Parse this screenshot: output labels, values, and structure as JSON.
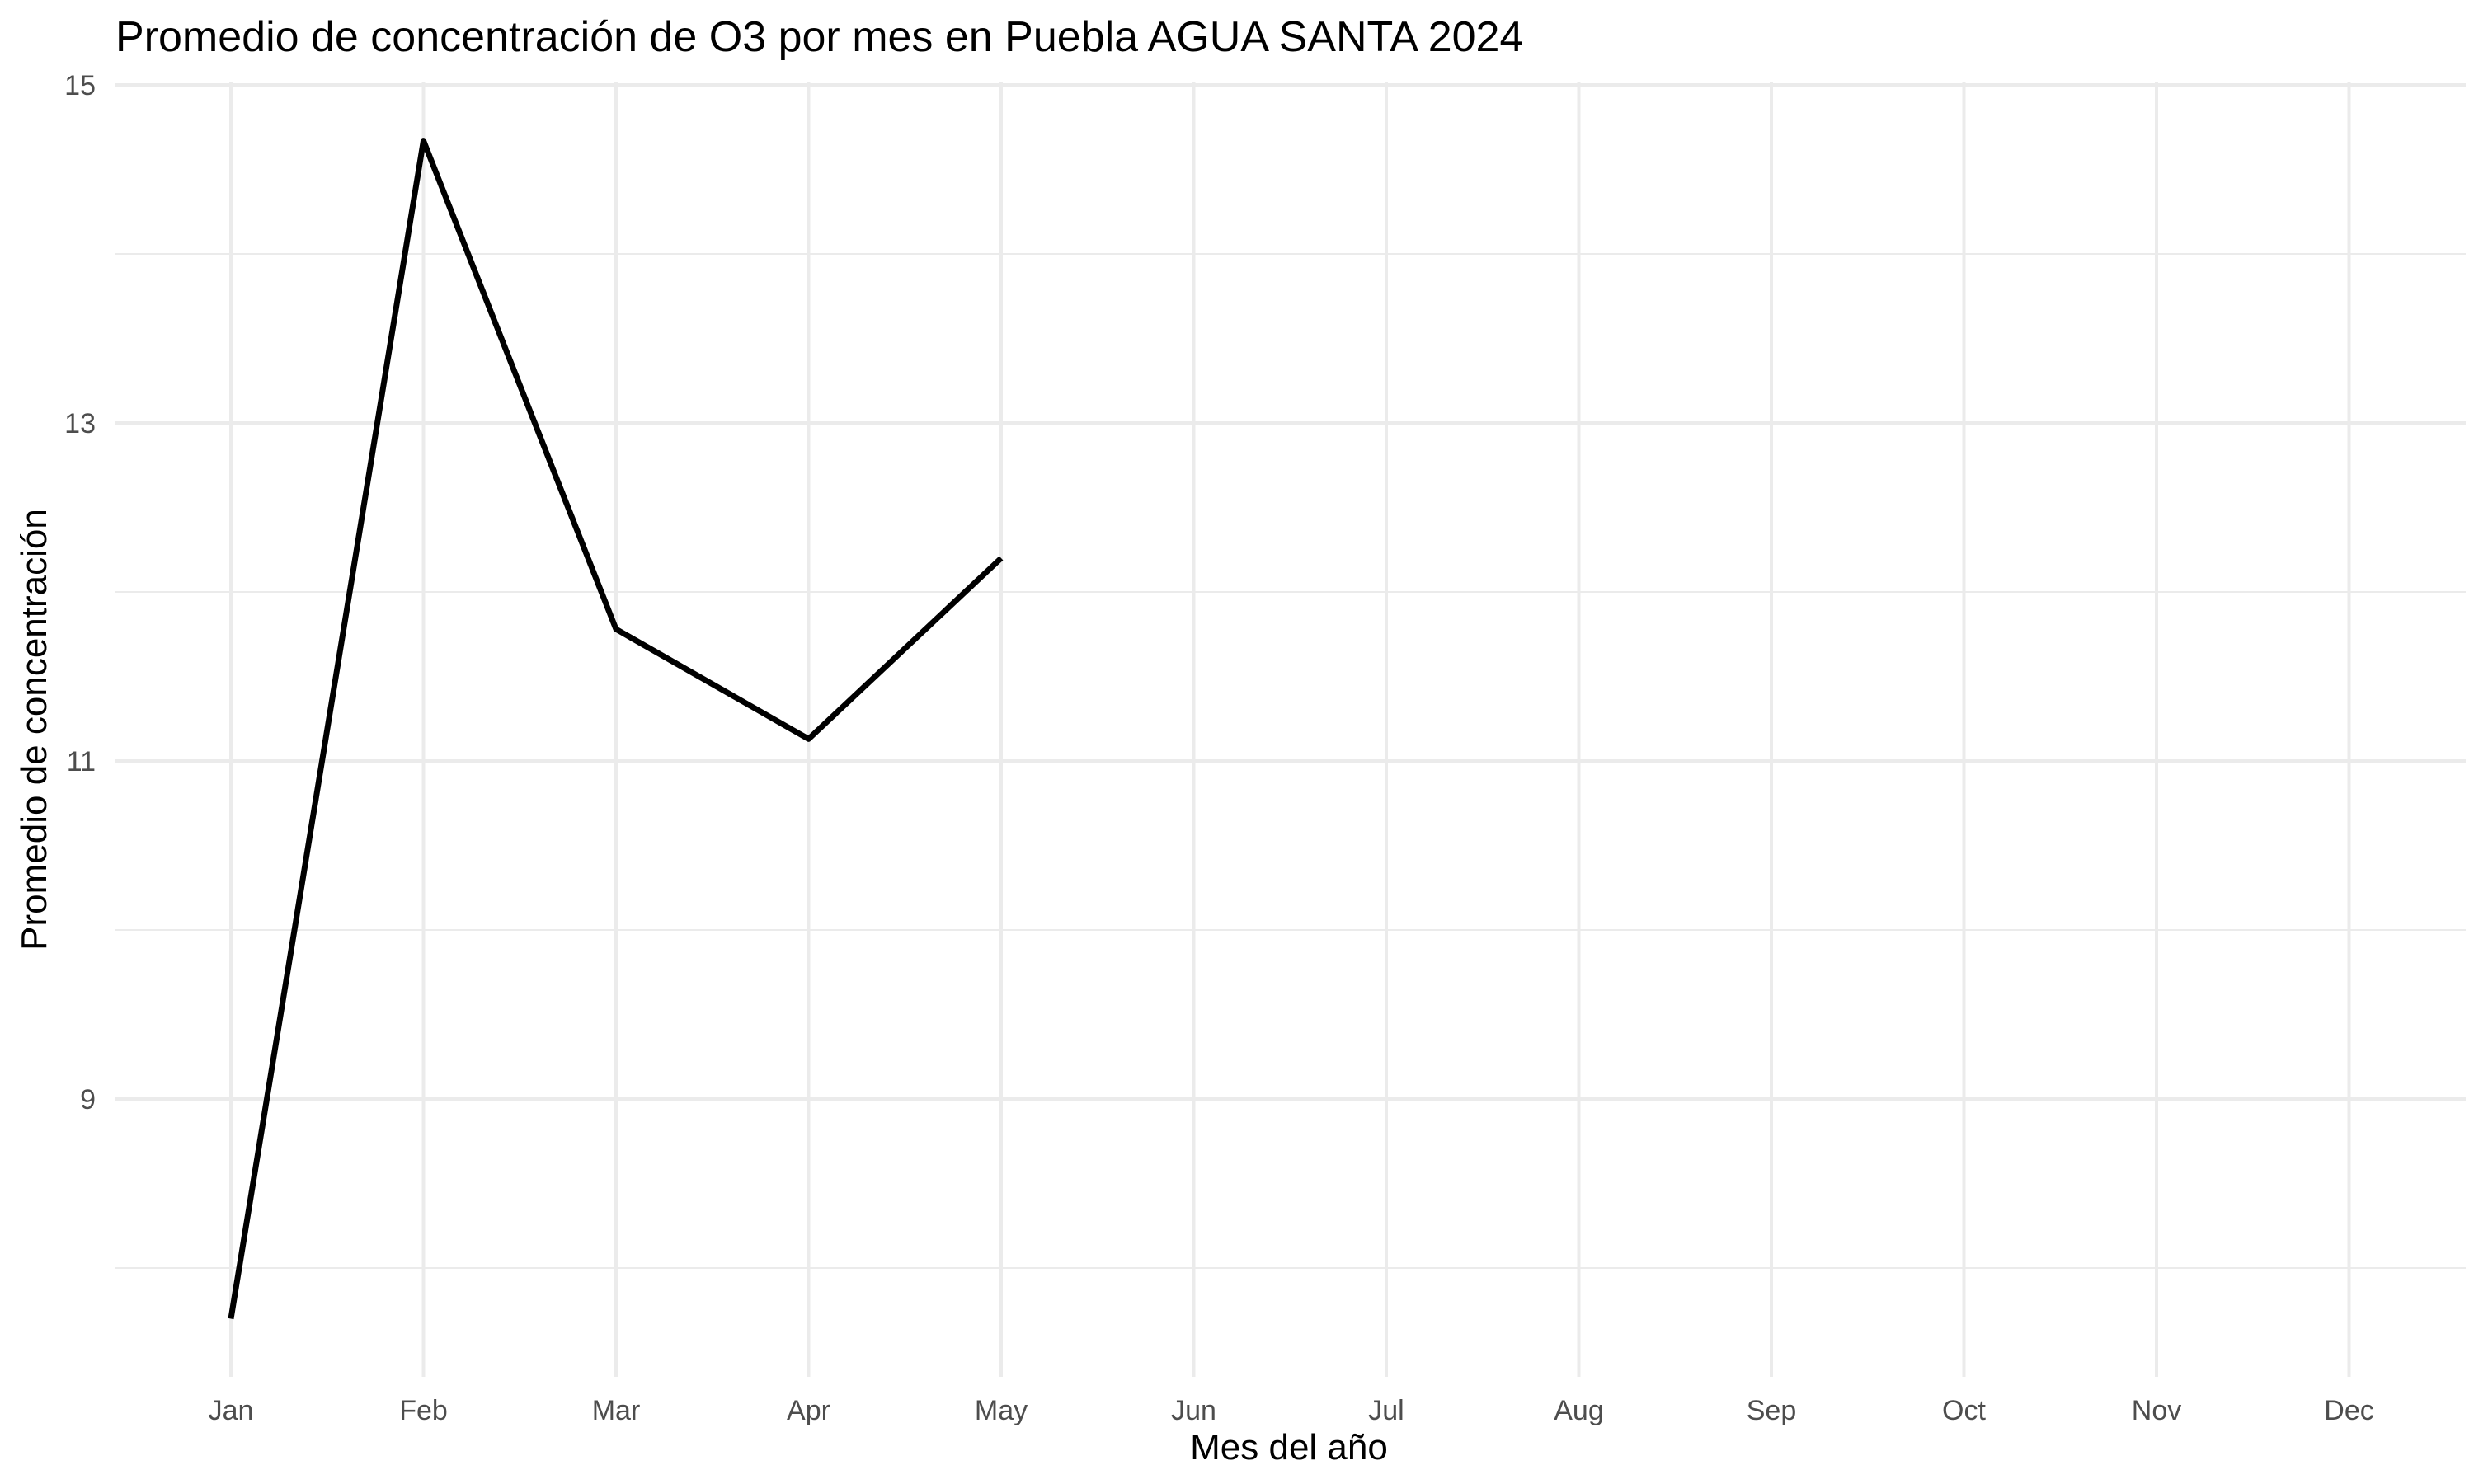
{
  "chart_data": {
    "type": "line",
    "title": "Promedio de concentración de O3 por mes en Puebla AGUA SANTA 2024",
    "xlabel": "Mes del año",
    "ylabel": "Promedio de concentración",
    "categories": [
      "Jan",
      "Feb",
      "Mar",
      "Apr",
      "May",
      "Jun",
      "Jul",
      "Aug",
      "Sep",
      "Oct",
      "Nov",
      "Dec"
    ],
    "x": [
      "Jan",
      "Feb",
      "Mar",
      "Apr",
      "May"
    ],
    "values": [
      7.7,
      14.67,
      11.78,
      11.13,
      12.2
    ],
    "yticks": [
      9,
      11,
      13,
      15
    ],
    "ylim": [
      7.3,
      15
    ],
    "grid": true,
    "line_color": "#000000",
    "grid_color": "#ebebeb"
  }
}
